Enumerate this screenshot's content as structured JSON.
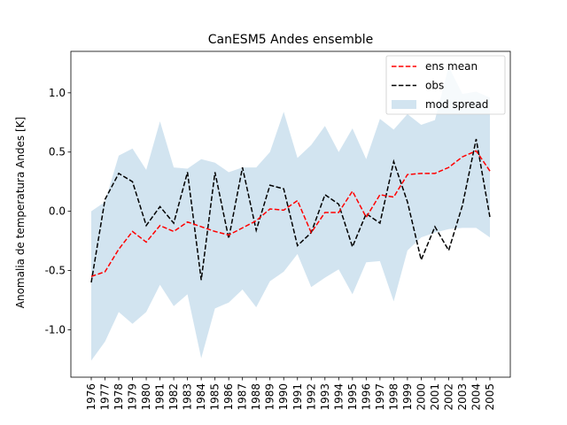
{
  "chart_data": {
    "type": "line",
    "title": "CanESM5 Andes ensemble",
    "xlabel": "",
    "ylabel": "Anomalia de temperatura Andes [K]",
    "ylim": [
      -1.4,
      1.35
    ],
    "yticks": [
      "-1.0",
      "-0.5",
      "0.0",
      "0.5",
      "1.0"
    ],
    "ytick_values": [
      -1.0,
      -0.5,
      0.0,
      0.5,
      1.0
    ],
    "x": [
      1976,
      1977,
      1978,
      1979,
      1980,
      1981,
      1982,
      1983,
      1984,
      1985,
      1986,
      1987,
      1988,
      1989,
      1990,
      1991,
      1992,
      1993,
      1994,
      1995,
      1996,
      1997,
      1998,
      1999,
      2000,
      2001,
      2002,
      2003,
      2004,
      2005
    ],
    "legend_position": "top-right",
    "grid": false,
    "series": [
      {
        "name": "ens mean",
        "color": "#ff0000",
        "style": "dashed",
        "values": [
          -0.55,
          -0.51,
          -0.32,
          -0.17,
          -0.26,
          -0.12,
          -0.17,
          -0.09,
          -0.13,
          -0.17,
          -0.2,
          -0.14,
          -0.08,
          0.02,
          0.01,
          0.09,
          -0.18,
          -0.01,
          -0.01,
          0.17,
          -0.05,
          0.14,
          0.12,
          0.31,
          0.32,
          0.32,
          0.37,
          0.46,
          0.51,
          0.34
        ]
      },
      {
        "name": "obs",
        "color": "#000000",
        "style": "dashed",
        "values": [
          -0.6,
          0.1,
          0.32,
          0.25,
          -0.12,
          0.04,
          -0.1,
          0.33,
          -0.58,
          0.33,
          -0.23,
          0.37,
          -0.16,
          0.22,
          0.19,
          -0.29,
          -0.18,
          0.14,
          0.06,
          -0.3,
          -0.02,
          -0.1,
          0.42,
          0.08,
          -0.41,
          -0.13,
          -0.33,
          0.05,
          0.61,
          -0.05
        ]
      }
    ],
    "band": {
      "name": "mod spread",
      "color": "#1f77b4",
      "opacity": 0.2,
      "upper": [
        0.0,
        0.08,
        0.47,
        0.53,
        0.35,
        0.76,
        0.37,
        0.36,
        0.44,
        0.41,
        0.33,
        0.37,
        0.37,
        0.5,
        0.84,
        0.45,
        0.56,
        0.72,
        0.5,
        0.7,
        0.44,
        0.78,
        0.69,
        0.82,
        0.73,
        0.77,
        1.22,
        0.99,
        1.01,
        0.96
      ],
      "lower": [
        -1.26,
        -1.1,
        -0.85,
        -0.95,
        -0.85,
        -0.62,
        -0.8,
        -0.7,
        -1.24,
        -0.82,
        -0.77,
        -0.66,
        -0.81,
        -0.59,
        -0.51,
        -0.36,
        -0.64,
        -0.56,
        -0.49,
        -0.7,
        -0.43,
        -0.42,
        -0.76,
        -0.33,
        -0.22,
        -0.18,
        -0.15,
        -0.14,
        -0.14,
        -0.22
      ]
    }
  }
}
